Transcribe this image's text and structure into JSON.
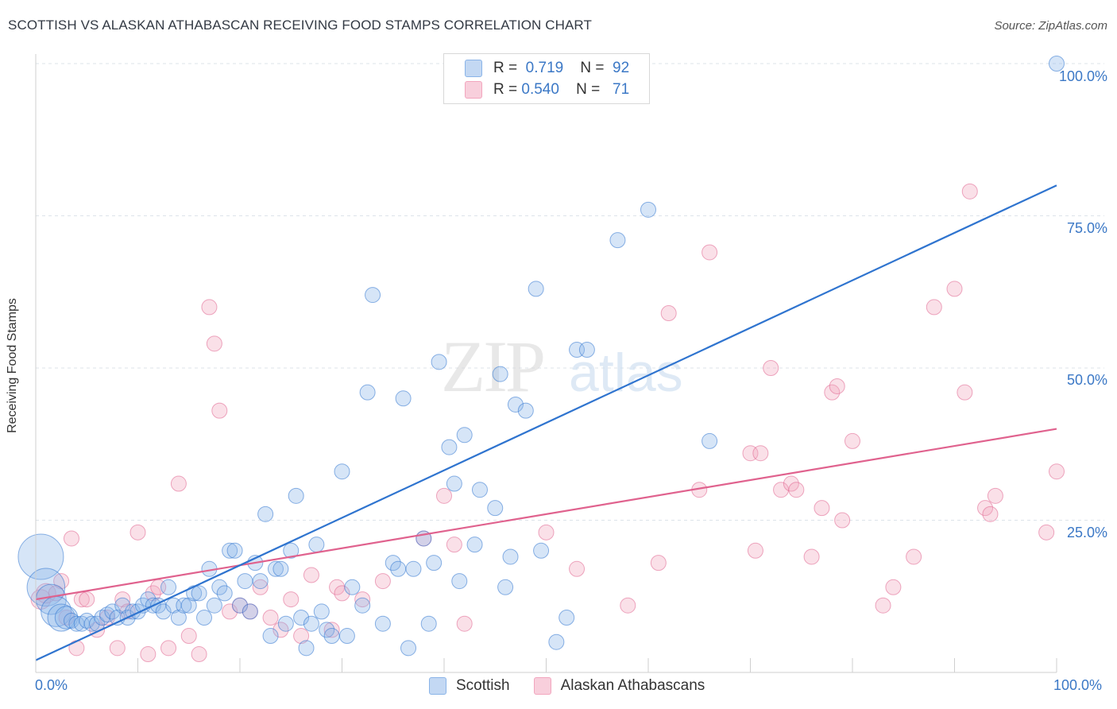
{
  "title": "SCOTTISH VS ALASKAN ATHABASCAN RECEIVING FOOD STAMPS CORRELATION CHART",
  "source": "Source: ZipAtlas.com",
  "colors": {
    "scottish": "#8ab4e8",
    "scottish_line": "#2f74cf",
    "alaskan": "#f2a6be",
    "alaskan_line": "#e0628e",
    "tick": "#3b78c6"
  },
  "legend": {
    "scottish": {
      "r_label": "R =",
      "r": "0.719",
      "n_label": "N =",
      "n": "92"
    },
    "alaskan": {
      "r_label": "R =",
      "r": "0.540",
      "n_label": "N =",
      "n": "71"
    }
  },
  "bottom_legend": {
    "scottish": "Scottish",
    "alaskan": "Alaskan Athabascans"
  },
  "chart_data": {
    "type": "scatter",
    "title": "SCOTTISH VS ALASKAN ATHABASCAN RECEIVING FOOD STAMPS CORRELATION CHART",
    "xlabel": "",
    "ylabel": "Receiving Food Stamps",
    "xlim": [
      0,
      100
    ],
    "ylim": [
      0,
      100
    ],
    "x_tick_labels": [
      "0.0%",
      "100.0%"
    ],
    "y_tick_labels": [
      "25.0%",
      "50.0%",
      "75.0%",
      "100.0%"
    ],
    "y_ticks": [
      25,
      50,
      75,
      100
    ],
    "grid": true,
    "legend_position": "top-center",
    "series": [
      {
        "name": "Scottish",
        "r": 0.719,
        "n": 92,
        "trend": [
          [
            0,
            2
          ],
          [
            100,
            80
          ]
        ],
        "points": [
          [
            0.5,
            19,
            3
          ],
          [
            1,
            14,
            2.5
          ],
          [
            1.5,
            12,
            2
          ],
          [
            2,
            10,
            2
          ],
          [
            2.5,
            9,
            1.8
          ],
          [
            3,
            9,
            1.5
          ],
          [
            3.5,
            8.5,
            1
          ],
          [
            4,
            8,
            1
          ],
          [
            4.5,
            8,
            1
          ],
          [
            5,
            8.5,
            1
          ],
          [
            5.5,
            8,
            1
          ],
          [
            6,
            8,
            1
          ],
          [
            6.5,
            9,
            1
          ],
          [
            7,
            9.5,
            1
          ],
          [
            7.5,
            10,
            1
          ],
          [
            8,
            9,
            1
          ],
          [
            8.5,
            11,
            1
          ],
          [
            9,
            9,
            1
          ],
          [
            9.5,
            10,
            1
          ],
          [
            10,
            10,
            1
          ],
          [
            10.5,
            11,
            1
          ],
          [
            11,
            12,
            1
          ],
          [
            11.5,
            11,
            1
          ],
          [
            12,
            11,
            1
          ],
          [
            12.5,
            10,
            1
          ],
          [
            13,
            14,
            1
          ],
          [
            13.5,
            11,
            1
          ],
          [
            14,
            9,
            1
          ],
          [
            14.5,
            11,
            1
          ],
          [
            15,
            11,
            1
          ],
          [
            15.5,
            13,
            1
          ],
          [
            16,
            13,
            1
          ],
          [
            16.5,
            9,
            1
          ],
          [
            17,
            17,
            1
          ],
          [
            17.5,
            11,
            1
          ],
          [
            18,
            14,
            1
          ],
          [
            18.5,
            13,
            1
          ],
          [
            19,
            20,
            1
          ],
          [
            19.5,
            20,
            1
          ],
          [
            20,
            11,
            1
          ],
          [
            20.5,
            15,
            1
          ],
          [
            21,
            10,
            1
          ],
          [
            21.5,
            18,
            1
          ],
          [
            22,
            15,
            1
          ],
          [
            22.5,
            26,
            1
          ],
          [
            23,
            6,
            1
          ],
          [
            23.5,
            17,
            1
          ],
          [
            24,
            17,
            1
          ],
          [
            24.5,
            8,
            1
          ],
          [
            25,
            20,
            1
          ],
          [
            25.5,
            29,
            1
          ],
          [
            26,
            9,
            1
          ],
          [
            26.5,
            4,
            1
          ],
          [
            27,
            8,
            1
          ],
          [
            27.5,
            21,
            1
          ],
          [
            28,
            10,
            1
          ],
          [
            28.5,
            7,
            1
          ],
          [
            29,
            6,
            1
          ],
          [
            30,
            33,
            1
          ],
          [
            30.5,
            6,
            1
          ],
          [
            31,
            14,
            1
          ],
          [
            32,
            11,
            1
          ],
          [
            32.5,
            46,
            1
          ],
          [
            33,
            62,
            1
          ],
          [
            34,
            8,
            1
          ],
          [
            35,
            18,
            1
          ],
          [
            35.5,
            17,
            1
          ],
          [
            36,
            45,
            1
          ],
          [
            36.5,
            4,
            1
          ],
          [
            37,
            17,
            1
          ],
          [
            38,
            22,
            1
          ],
          [
            38.5,
            8,
            1
          ],
          [
            39,
            18,
            1
          ],
          [
            39.5,
            51,
            1
          ],
          [
            40.5,
            37,
            1
          ],
          [
            41,
            31,
            1
          ],
          [
            41.5,
            15,
            1
          ],
          [
            42,
            39,
            1
          ],
          [
            43,
            21,
            1
          ],
          [
            43.5,
            30,
            1
          ],
          [
            45,
            27,
            1
          ],
          [
            45.5,
            49,
            1
          ],
          [
            46,
            14,
            1
          ],
          [
            46.5,
            19,
            1
          ],
          [
            47,
            44,
            1
          ],
          [
            48,
            43,
            1
          ],
          [
            49,
            63,
            1
          ],
          [
            49.5,
            20,
            1
          ],
          [
            51,
            5,
            1
          ],
          [
            52,
            9,
            1
          ],
          [
            53,
            53,
            1
          ],
          [
            54,
            53,
            1
          ],
          [
            57,
            71,
            1
          ],
          [
            60,
            76,
            1
          ],
          [
            66,
            38,
            1
          ],
          [
            100,
            100,
            1
          ]
        ]
      },
      {
        "name": "Alaskan Athabascans",
        "r": 0.54,
        "n": 71,
        "trend": [
          [
            0,
            12
          ],
          [
            100,
            40
          ]
        ],
        "points": [
          [
            0.5,
            12,
            1.3
          ],
          [
            1,
            13,
            1.3
          ],
          [
            2,
            13,
            1
          ],
          [
            2.5,
            15,
            1
          ],
          [
            3,
            9,
            1
          ],
          [
            3.5,
            22,
            1
          ],
          [
            4,
            4,
            1
          ],
          [
            4.5,
            12,
            1
          ],
          [
            5,
            12,
            1
          ],
          [
            6,
            7,
            1
          ],
          [
            7,
            9,
            1
          ],
          [
            8,
            4,
            1
          ],
          [
            8.5,
            12,
            1
          ],
          [
            9,
            10,
            1
          ],
          [
            10,
            23,
            1
          ],
          [
            11,
            3,
            1
          ],
          [
            11.5,
            13,
            1
          ],
          [
            12,
            14,
            1
          ],
          [
            13,
            4,
            1
          ],
          [
            14,
            31,
            1
          ],
          [
            15,
            6,
            1
          ],
          [
            16,
            3,
            1
          ],
          [
            17,
            60,
            1
          ],
          [
            17.5,
            54,
            1
          ],
          [
            18,
            43,
            1
          ],
          [
            19,
            10,
            1
          ],
          [
            20,
            11,
            1
          ],
          [
            21,
            10,
            1
          ],
          [
            22,
            14,
            1
          ],
          [
            23,
            9,
            1
          ],
          [
            24,
            7,
            1
          ],
          [
            25,
            12,
            1
          ],
          [
            26,
            6,
            1
          ],
          [
            27,
            16,
            1
          ],
          [
            29,
            7,
            1
          ],
          [
            29.5,
            14,
            1
          ],
          [
            30,
            13,
            1
          ],
          [
            32,
            12,
            1
          ],
          [
            34,
            15,
            1
          ],
          [
            38,
            22,
            1
          ],
          [
            40,
            29,
            1
          ],
          [
            41,
            21,
            1
          ],
          [
            42,
            8,
            1
          ],
          [
            50,
            23,
            1
          ],
          [
            53,
            17,
            1
          ],
          [
            58,
            11,
            1
          ],
          [
            61,
            18,
            1
          ],
          [
            62,
            59,
            1
          ],
          [
            65,
            30,
            1
          ],
          [
            66,
            69,
            1
          ],
          [
            70,
            36,
            1
          ],
          [
            70.5,
            20,
            1
          ],
          [
            71,
            36,
            1
          ],
          [
            72,
            50,
            1
          ],
          [
            73,
            30,
            1
          ],
          [
            74,
            31,
            1
          ],
          [
            74.5,
            30,
            1
          ],
          [
            76,
            19,
            1
          ],
          [
            77,
            27,
            1
          ],
          [
            78,
            46,
            1
          ],
          [
            78.5,
            47,
            1
          ],
          [
            79,
            25,
            1
          ],
          [
            80,
            38,
            1
          ],
          [
            83,
            11,
            1
          ],
          [
            84,
            14,
            1
          ],
          [
            86,
            19,
            1
          ],
          [
            88,
            60,
            1
          ],
          [
            90,
            63,
            1
          ],
          [
            91,
            46,
            1
          ],
          [
            91.5,
            79,
            1
          ],
          [
            93,
            27,
            1
          ],
          [
            93.5,
            26,
            1
          ],
          [
            94,
            29,
            1
          ],
          [
            99,
            23,
            1
          ],
          [
            100,
            33,
            1
          ]
        ]
      }
    ]
  }
}
